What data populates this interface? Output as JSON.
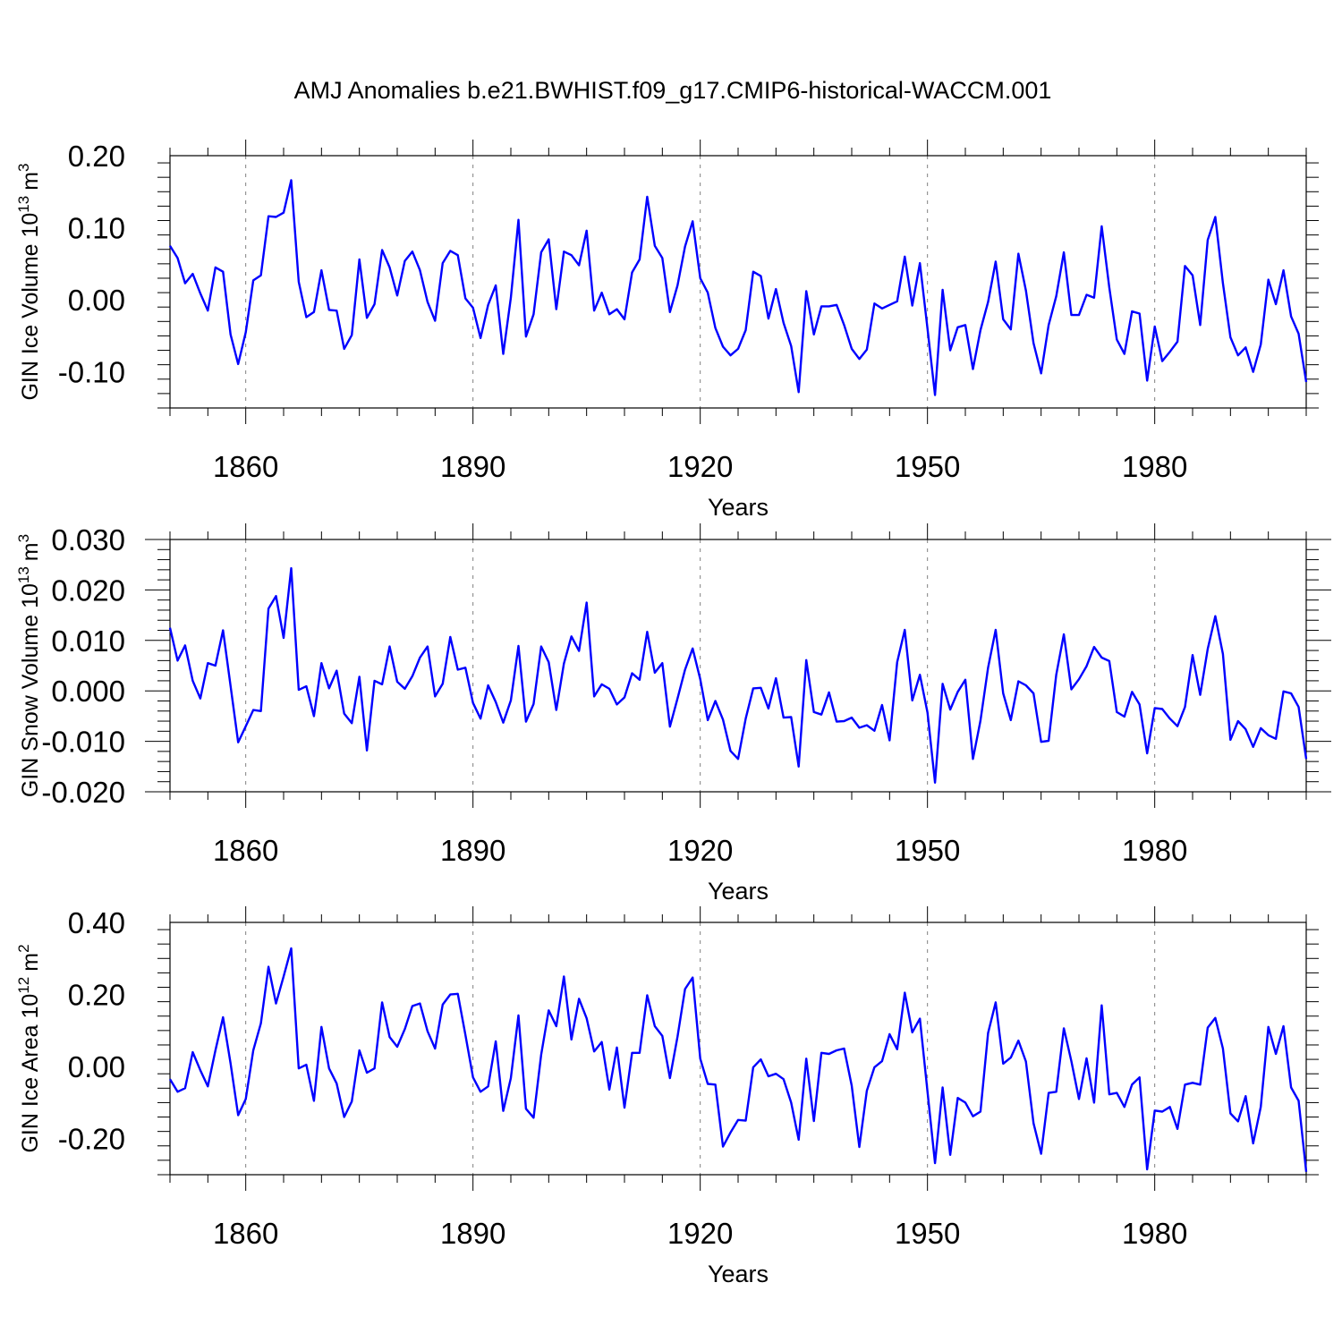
{
  "title": "AMJ Anomalies b.e21.BWHIST.f09_g17.CMIP6-historical-WACCM.001",
  "colors": {
    "line": "#0000ff",
    "axis": "#000000",
    "grid": "#808080"
  },
  "chart_data": [
    {
      "type": "line",
      "ylabel": "GIN Ice Volume 10",
      "ylabel_exponent": "13",
      "ylabel_unit": "m",
      "ylabel_unit_exponent": "3",
      "xlabel": "Years",
      "xlim": [
        1850,
        2000
      ],
      "ylim": [
        -0.15,
        0.2
      ],
      "xticks": [
        "1860",
        "1890",
        "1920",
        "1950",
        "1980"
      ],
      "yticks": [
        "0.20",
        "0.10",
        "0.00",
        "-0.10"
      ],
      "ytick_values": [
        0.2,
        0.1,
        0.0,
        -0.1
      ],
      "grid": "vertical dashed at labeled years",
      "series": [
        {
          "x_start": 1850,
          "values": [
            0.075,
            0.058,
            0.023,
            0.036,
            0.009,
            -0.015,
            0.045,
            0.039,
            -0.048,
            -0.089,
            -0.045,
            0.027,
            0.034,
            0.116,
            0.115,
            0.121,
            0.166,
            0.025,
            -0.024,
            -0.017,
            0.041,
            -0.014,
            -0.015,
            -0.068,
            -0.049,
            0.056,
            -0.025,
            -0.006,
            0.069,
            0.045,
            0.006,
            0.054,
            0.067,
            0.041,
            -0.003,
            -0.029,
            0.051,
            0.068,
            0.062,
            0.002,
            -0.011,
            -0.053,
            -0.007,
            0.02,
            -0.075,
            0.003,
            0.111,
            -0.051,
            -0.02,
            0.066,
            0.084,
            -0.013,
            0.067,
            0.062,
            0.048,
            0.096,
            -0.015,
            0.01,
            -0.02,
            -0.013,
            -0.027,
            0.038,
            0.056,
            0.143,
            0.075,
            0.058,
            -0.017,
            0.02,
            0.074,
            0.109,
            0.03,
            0.01,
            -0.039,
            -0.065,
            -0.077,
            -0.068,
            -0.042,
            0.039,
            0.033,
            -0.026,
            0.015,
            -0.032,
            -0.064,
            -0.128,
            0.012,
            -0.048,
            -0.009,
            -0.009,
            -0.007,
            -0.035,
            -0.068,
            -0.082,
            -0.069,
            -0.005,
            -0.012,
            -0.007,
            -0.002,
            0.06,
            -0.008,
            0.051,
            -0.04,
            -0.132,
            0.014,
            -0.07,
            -0.038,
            -0.035,
            -0.096,
            -0.042,
            -0.003,
            0.053,
            -0.027,
            -0.041,
            0.064,
            0.013,
            -0.06,
            -0.102,
            -0.035,
            0.005,
            0.066,
            -0.021,
            -0.021,
            0.007,
            0.003,
            0.102,
            0.017,
            -0.055,
            -0.075,
            -0.016,
            -0.019,
            -0.112,
            -0.037,
            -0.085,
            -0.072,
            -0.058,
            0.047,
            0.034,
            -0.035,
            0.083,
            0.115,
            0.023,
            -0.052,
            -0.077,
            -0.066,
            -0.1,
            -0.062,
            0.028,
            -0.006,
            0.041,
            -0.023,
            -0.047,
            -0.114
          ]
        }
      ]
    },
    {
      "type": "line",
      "ylabel": "GIN Snow Volume 10",
      "ylabel_exponent": "13",
      "ylabel_unit": "m",
      "ylabel_unit_exponent": "3",
      "xlabel": "Years",
      "xlim": [
        1850,
        2000
      ],
      "ylim": [
        -0.02,
        0.03
      ],
      "xticks": [
        "1860",
        "1890",
        "1920",
        "1950",
        "1980"
      ],
      "yticks": [
        "0.030",
        "0.020",
        "0.010",
        "0.000",
        "-0.010",
        "-0.020"
      ],
      "ytick_values": [
        0.03,
        0.02,
        0.01,
        0.0,
        -0.01,
        -0.02
      ],
      "grid": "vertical dashed at labeled years",
      "series": [
        {
          "x_start": 1850,
          "values": [
            0.0125,
            0.006,
            0.009,
            0.002,
            -0.0015,
            0.0055,
            0.005,
            0.012,
            0.001,
            -0.0102,
            -0.007,
            -0.0038,
            -0.004,
            0.0163,
            0.0188,
            0.0105,
            0.0243,
            0.0002,
            0.0009,
            -0.005,
            0.0055,
            0.0005,
            0.004,
            -0.0045,
            -0.0064,
            0.0028,
            -0.0118,
            0.002,
            0.0013,
            0.0088,
            0.0018,
            0.0004,
            0.0029,
            0.0066,
            0.0088,
            -0.0011,
            0.0014,
            0.0107,
            0.0042,
            0.0046,
            -0.0024,
            -0.0055,
            0.0011,
            -0.0022,
            -0.0063,
            -0.0019,
            0.0089,
            -0.0061,
            -0.0026,
            0.0088,
            0.0057,
            -0.0038,
            0.0054,
            0.0108,
            0.0079,
            0.0175,
            -0.0011,
            0.0013,
            0.0004,
            -0.0027,
            -0.0013,
            0.0035,
            0.0022,
            0.0117,
            0.0036,
            0.0055,
            -0.0071,
            -0.0015,
            0.0042,
            0.0084,
            0.0023,
            -0.0058,
            -0.002,
            -0.0057,
            -0.0119,
            -0.0135,
            -0.0055,
            0.0005,
            0.0006,
            -0.0035,
            0.0025,
            -0.0053,
            -0.0052,
            -0.015,
            0.0061,
            -0.0042,
            -0.0047,
            -0.0003,
            -0.0061,
            -0.006,
            -0.0053,
            -0.0073,
            -0.0068,
            -0.0079,
            -0.0028,
            -0.0098,
            0.0057,
            0.0121,
            -0.0019,
            0.0032,
            -0.0043,
            -0.0182,
            0.0014,
            -0.0037,
            -0.0002,
            0.0022,
            -0.0135,
            -0.0059,
            0.0046,
            0.0121,
            -0.0005,
            -0.0058,
            0.0019,
            0.0011,
            -0.0005,
            -0.0101,
            -0.0099,
            0.0032,
            0.0112,
            0.0003,
            0.0023,
            0.0049,
            0.0087,
            0.0066,
            0.0059,
            -0.0042,
            -0.0051,
            -0.0002,
            -0.0027,
            -0.0124,
            -0.0034,
            -0.0036,
            -0.0055,
            -0.007,
            -0.0032,
            0.0071,
            -0.0008,
            0.0083,
            0.0148,
            0.0073,
            -0.0097,
            -0.006,
            -0.0076,
            -0.0111,
            -0.0074,
            -0.0088,
            -0.0095,
            -0.0001,
            -0.0005,
            -0.0032,
            -0.0135
          ]
        }
      ]
    },
    {
      "type": "line",
      "ylabel": "GIN Ice Area 10",
      "ylabel_exponent": "12",
      "ylabel_unit": "m",
      "ylabel_unit_exponent": "2",
      "xlabel": "Years",
      "xlim": [
        1850,
        2000
      ],
      "ylim": [
        -0.3,
        0.4
      ],
      "xticks": [
        "1860",
        "1890",
        "1920",
        "1950",
        "1980"
      ],
      "yticks": [
        "0.40",
        "0.20",
        "0.00",
        "-0.20"
      ],
      "ytick_values": [
        0.4,
        0.2,
        0.0,
        -0.2
      ],
      "grid": "vertical dashed at labeled years",
      "series": [
        {
          "x_start": 1850,
          "values": [
            -0.035,
            -0.07,
            -0.06,
            0.04,
            -0.01,
            -0.055,
            0.045,
            0.137,
            0.009,
            -0.135,
            -0.09,
            0.045,
            0.12,
            0.277,
            0.175,
            0.25,
            0.328,
            -0.005,
            0.005,
            -0.095,
            0.11,
            -0.005,
            -0.047,
            -0.14,
            -0.097,
            0.045,
            -0.017,
            -0.005,
            0.178,
            0.082,
            0.055,
            0.104,
            0.168,
            0.175,
            0.098,
            0.05,
            0.172,
            0.2,
            0.202,
            0.088,
            -0.03,
            -0.07,
            -0.055,
            0.07,
            -0.123,
            -0.032,
            0.142,
            -0.117,
            -0.142,
            0.033,
            0.156,
            0.112,
            0.25,
            0.075,
            0.188,
            0.134,
            0.042,
            0.068,
            -0.064,
            0.053,
            -0.114,
            0.038,
            0.038,
            0.198,
            0.112,
            0.085,
            -0.032,
            0.083,
            0.215,
            0.247,
            0.022,
            -0.048,
            -0.05,
            -0.222,
            -0.183,
            -0.148,
            -0.15,
            -0.002,
            0.02,
            -0.027,
            -0.02,
            -0.035,
            -0.1,
            -0.203,
            0.022,
            -0.151,
            0.038,
            0.035,
            0.045,
            0.05,
            -0.053,
            -0.223,
            -0.067,
            -0.002,
            0.015,
            0.09,
            0.048,
            0.205,
            0.095,
            0.133,
            -0.07,
            -0.268,
            -0.058,
            -0.245,
            -0.087,
            -0.1,
            -0.138,
            -0.125,
            0.093,
            0.178,
            0.008,
            0.025,
            0.072,
            0.014,
            -0.157,
            -0.242,
            -0.073,
            -0.07,
            0.106,
            0.015,
            -0.09,
            0.023,
            -0.1,
            0.17,
            -0.077,
            -0.073,
            -0.112,
            -0.05,
            -0.03,
            -0.285,
            -0.122,
            -0.125,
            -0.112,
            -0.173,
            -0.05,
            -0.045,
            -0.05,
            0.108,
            0.135,
            0.05,
            -0.13,
            -0.152,
            -0.082,
            -0.213,
            -0.112,
            0.11,
            0.035,
            0.112,
            -0.058,
            -0.095,
            -0.292
          ]
        }
      ]
    }
  ]
}
